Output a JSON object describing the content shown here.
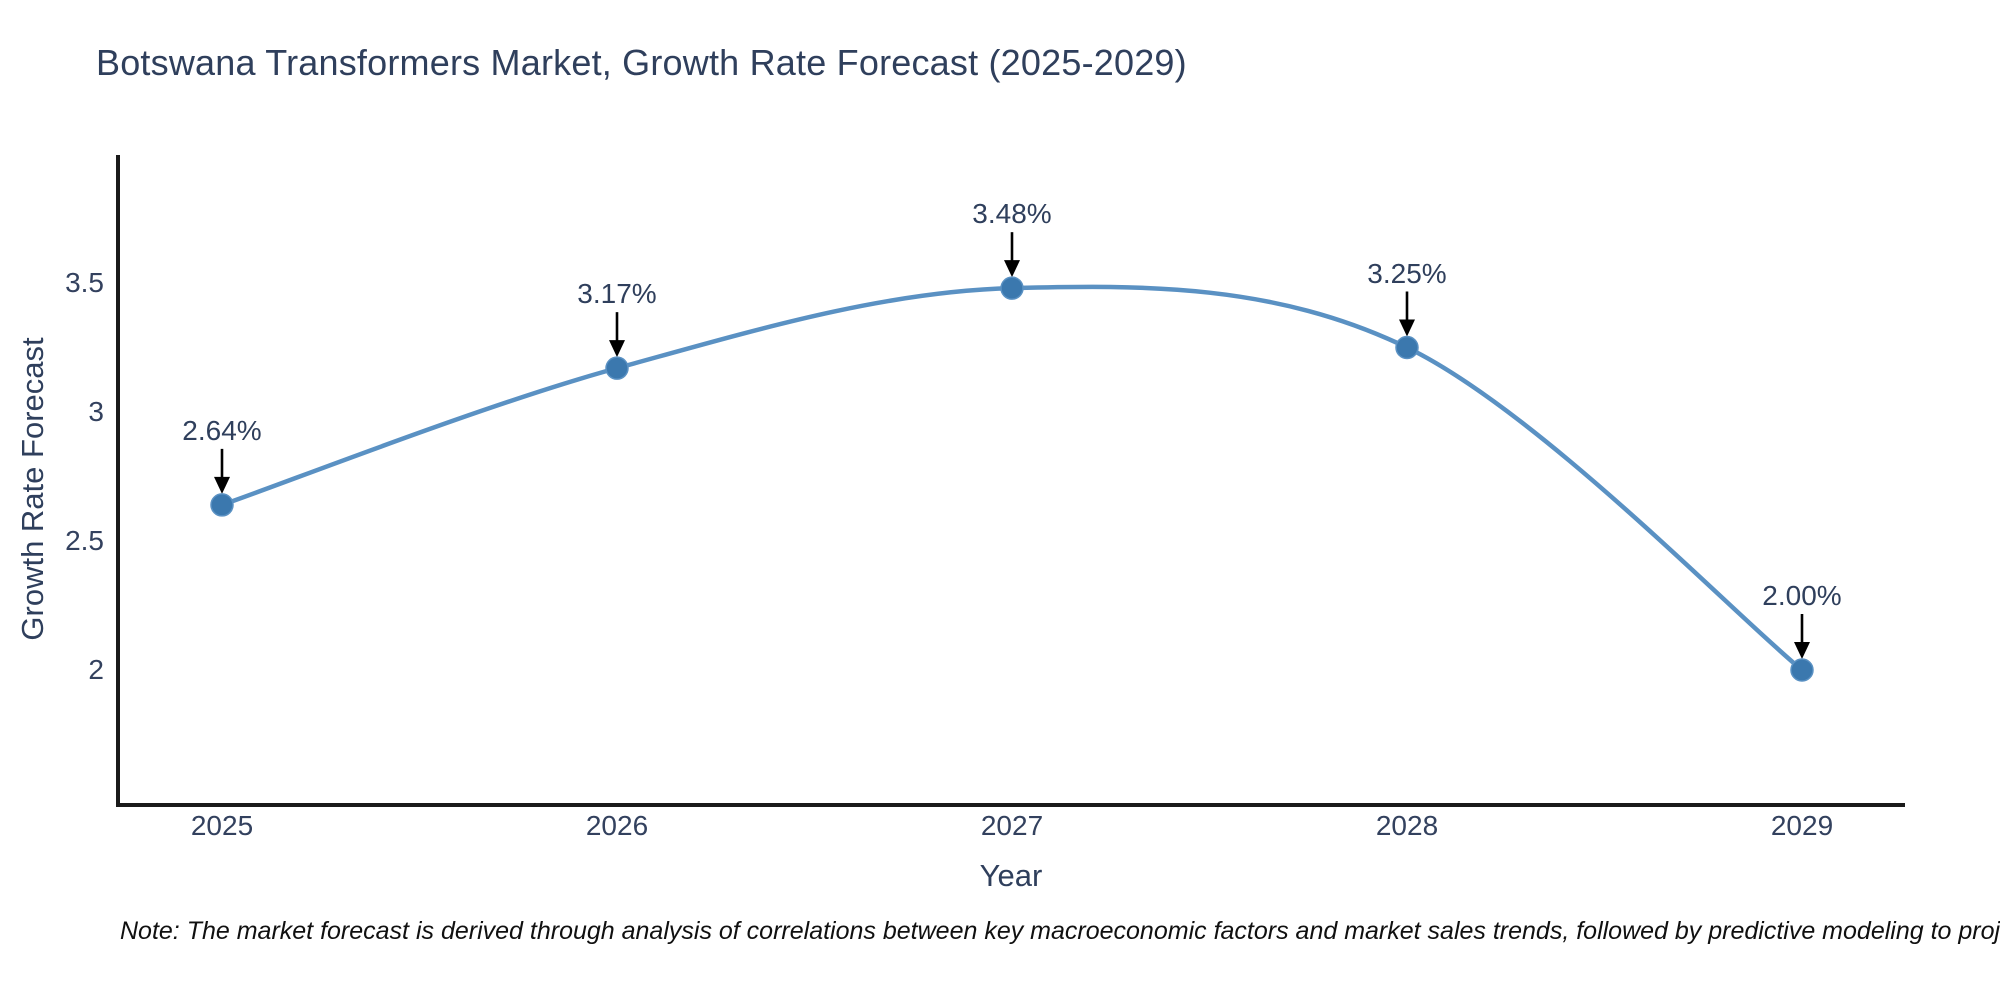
{
  "page": {
    "background": "#ffffff"
  },
  "chart_data": {
    "type": "line",
    "title": "Botswana Transformers Market, Growth Rate Forecast (2025-2029)",
    "xlabel": "Year",
    "ylabel": "Growth Rate Forecast",
    "x": [
      2025,
      2026,
      2027,
      2028,
      2029
    ],
    "x_tick_labels": [
      "2025",
      "2026",
      "2027",
      "2028",
      "2029"
    ],
    "series": [
      {
        "name": "Growth Rate Forecast",
        "values": [
          2.64,
          3.17,
          3.48,
          3.25,
          2.0
        ]
      }
    ],
    "point_labels": [
      "2.64%",
      "3.17%",
      "3.48%",
      "3.25%",
      "2.00%"
    ],
    "ytick_values": [
      3.5,
      3.0,
      2.5,
      2.0
    ],
    "ytick_labels": [
      "3.5",
      "3",
      "2.5",
      "2"
    ],
    "ylim": [
      1.45,
      3.99
    ],
    "grid": false,
    "legend_visible": false,
    "line_color": "#5a91c3",
    "marker_color": "#3b78ae",
    "annotation_arrow_color": "#000000",
    "text_color": "#2f3f5c",
    "axis_color": "#1a1a1a",
    "note": "Note: The market forecast is derived through analysis of correlations between key macroeconomic factors and market sales trends, followed by predictive modeling to project future sales"
  }
}
